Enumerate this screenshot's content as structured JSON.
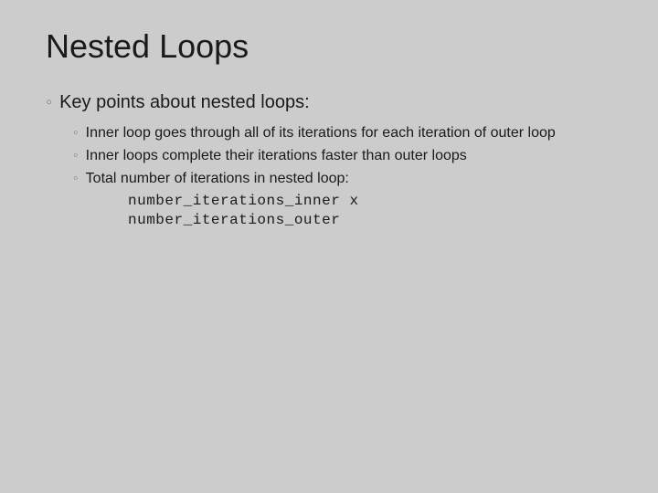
{
  "slide": {
    "title": "Nested Loops",
    "background_color": "#cccccc",
    "outer_background_color": "#393939",
    "title_fontsize": 36,
    "title_color": "#1a1a1a",
    "bullet_marker_color": "#888888",
    "text_color": "#1a1a1a",
    "l1_fontsize": 20,
    "l2_fontsize": 16,
    "code_fontsize": 16,
    "code_font": "Courier New",
    "bullets_l1": [
      "Key points about nested loops:"
    ],
    "bullets_l2": [
      "Inner loop goes through all of its iterations for each iteration of outer loop",
      "Inner loops complete their iterations faster than outer loops",
      "Total number of iterations in nested loop:"
    ],
    "code_lines": [
      "number_iterations_inner  x",
      "number_iterations_outer"
    ]
  }
}
